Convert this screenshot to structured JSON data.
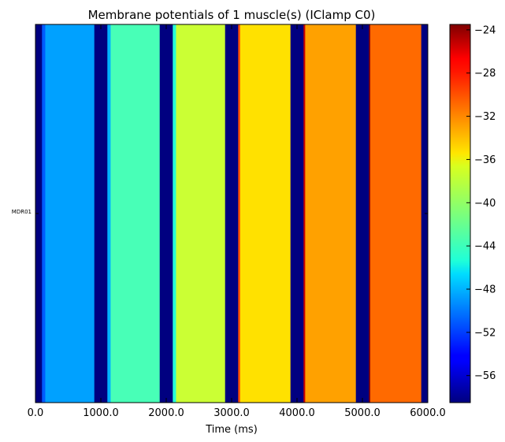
{
  "chart_data": {
    "type": "heatmap",
    "title": "Membrane potentials of 1 muscle(s) (IClamp C0)",
    "xlabel": "Time (ms)",
    "ylabel": "",
    "rows": [
      "MDR01"
    ],
    "xlim": [
      0,
      6000
    ],
    "xticks": [
      0,
      1000,
      2000,
      3000,
      4000,
      5000,
      6000
    ],
    "xtick_labels": [
      "0.0",
      "1000.0",
      "2000.0",
      "3000.0",
      "4000.0",
      "5000.0",
      "6000.0"
    ],
    "colorbar": {
      "min": -58.5,
      "max": -23.5,
      "ticks": [
        -56,
        -52,
        -48,
        -44,
        -40,
        -36,
        -32,
        -28,
        -24
      ],
      "tick_labels": [
        "−56",
        "−52",
        "−48",
        "−44",
        "−40",
        "−36",
        "−32",
        "−28",
        "−24"
      ],
      "colormap": "jet"
    },
    "segments": [
      {
        "t0": 0,
        "t1": 100,
        "v": -58.5
      },
      {
        "t0": 100,
        "t1": 150,
        "v": -51.0
      },
      {
        "t0": 150,
        "t1": 900,
        "v": -48.6
      },
      {
        "t0": 900,
        "t1": 1100,
        "v": -58.5
      },
      {
        "t0": 1100,
        "t1": 1150,
        "v": -48.0
      },
      {
        "t0": 1150,
        "t1": 1900,
        "v": -42.9
      },
      {
        "t0": 1900,
        "t1": 2100,
        "v": -58.5
      },
      {
        "t0": 2100,
        "t1": 2150,
        "v": -44.0
      },
      {
        "t0": 2150,
        "t1": 2900,
        "v": -38.4
      },
      {
        "t0": 2900,
        "t1": 3100,
        "v": -58.5
      },
      {
        "t0": 3100,
        "t1": 3130,
        "v": -30.5
      },
      {
        "t0": 3130,
        "t1": 3900,
        "v": -35.6
      },
      {
        "t0": 3900,
        "t1": 4100,
        "v": -58.5
      },
      {
        "t0": 4100,
        "t1": 4125,
        "v": -26.0
      },
      {
        "t0": 4125,
        "t1": 4900,
        "v": -33.4
      },
      {
        "t0": 4900,
        "t1": 5100,
        "v": -58.5
      },
      {
        "t0": 5100,
        "t1": 5120,
        "v": -24.0
      },
      {
        "t0": 5120,
        "t1": 5900,
        "v": -31.5
      },
      {
        "t0": 5900,
        "t1": 6000,
        "v": -58.5
      }
    ]
  }
}
